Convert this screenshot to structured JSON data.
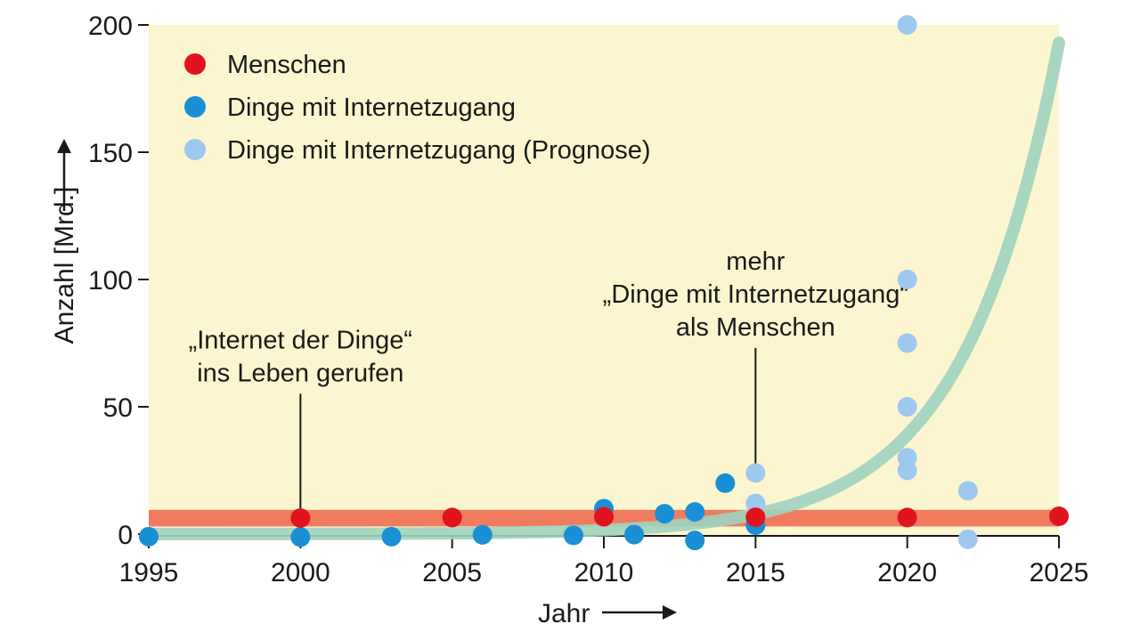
{
  "chart_data": {
    "type": "scatter",
    "xlabel": "Jahr",
    "ylabel": "Anzahl [Mrd.]",
    "xlim": [
      1995,
      2025
    ],
    "ylim": [
      0,
      200
    ],
    "x_ticks": [
      1995,
      2000,
      2005,
      2010,
      2015,
      2020,
      2025
    ],
    "y_ticks": [
      0,
      50,
      100,
      150,
      200
    ],
    "legend_position": "top-left",
    "colors": {
      "plot_background": "#fbf6cf",
      "menschen": "#e0141e",
      "dinge": "#1a8fd6",
      "prognose": "#9fc8ee",
      "menschen_band": "#f07b5e",
      "trend_curve": "#9fd3be"
    },
    "series": [
      {
        "name": "Menschen",
        "color_key": "menschen",
        "points": [
          [
            2000,
            6.3
          ],
          [
            2005,
            6.5
          ],
          [
            2010,
            6.8
          ],
          [
            2015,
            6.6
          ],
          [
            2020,
            6.5
          ],
          [
            2025,
            7.0
          ]
        ]
      },
      {
        "name": "Dinge mit Internetzugang",
        "color_key": "dinge",
        "points": [
          [
            1995,
            -1.0
          ],
          [
            2000,
            -1.2
          ],
          [
            2003,
            -1.0
          ],
          [
            2006,
            -0.3
          ],
          [
            2009,
            -0.5
          ],
          [
            2010,
            10.0
          ],
          [
            2011,
            -0.2
          ],
          [
            2012,
            8.0
          ],
          [
            2013,
            8.7
          ],
          [
            2013,
            -2.5
          ],
          [
            2014,
            20.0
          ],
          [
            2015,
            3.5
          ]
        ]
      },
      {
        "name": "Dinge mit Internetzugang (Prognose)",
        "color_key": "prognose",
        "points": [
          [
            2015,
            24.0
          ],
          [
            2015,
            12.0
          ],
          [
            2020,
            200.0
          ],
          [
            2020,
            100.0
          ],
          [
            2020,
            75.0
          ],
          [
            2020,
            50.0
          ],
          [
            2020,
            30.0
          ],
          [
            2020,
            25.0
          ],
          [
            2022,
            17.0
          ],
          [
            2022,
            -2.0
          ]
        ]
      }
    ],
    "menschen_band": {
      "y_from": 3.0,
      "y_to": 9.5
    },
    "trend_curve": {
      "x_start": 1995,
      "x_end": 2025,
      "y_start": 0,
      "y_end": 193
    },
    "annotations": [
      {
        "lines": [
          "„Internet der Dinge“",
          "ins Leben gerufen"
        ],
        "x": 2000,
        "text_y": 60,
        "pointer_to": 8
      },
      {
        "lines": [
          "mehr",
          "„Dinge mit Internetzugang“",
          "als Menschen"
        ],
        "x": 2015,
        "text_y": 78,
        "pointer_to": 27
      }
    ]
  }
}
